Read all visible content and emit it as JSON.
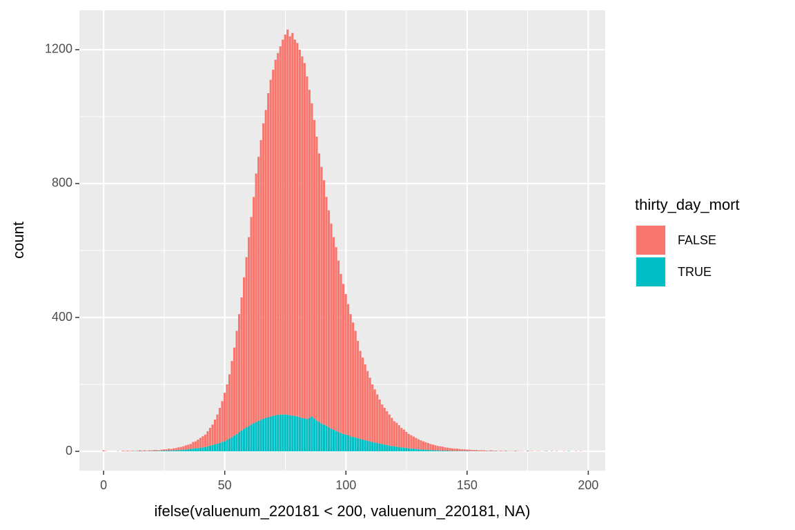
{
  "chart_data": {
    "type": "histogram",
    "stacked": true,
    "xlabel": "ifelse(valuenum_220181 < 200, valuenum_220181, NA)",
    "ylabel": "count",
    "legend_title": "thirty_day_mort",
    "legend": "right",
    "grid": true,
    "xlim": [
      -10,
      207
    ],
    "ylim": [
      -57.7,
      1317.5
    ],
    "xticks": [
      0,
      50,
      100,
      150,
      200
    ],
    "yticks": [
      0,
      400,
      800,
      1200
    ],
    "bins": [
      -0.5,
      0.5,
      1.5,
      2.5,
      3.5,
      4.5,
      5.5,
      6.5,
      7.5,
      8.5,
      9.5,
      10.5,
      11.5,
      12.5,
      13.5,
      14.5,
      15.5,
      16.5,
      17.5,
      18.5,
      19.5,
      20.5,
      21.5,
      22.5,
      23.5,
      24.5,
      25.5,
      26.5,
      27.5,
      28.5,
      29.5,
      30.5,
      31.5,
      32.5,
      33.5,
      34.5,
      35.5,
      36.5,
      37.5,
      38.5,
      39.5,
      40.5,
      41.5,
      42.5,
      43.5,
      44.5,
      45.5,
      46.5,
      47.5,
      48.5,
      49.5,
      50.5,
      51.5,
      52.5,
      53.5,
      54.5,
      55.5,
      56.5,
      57.5,
      58.5,
      59.5,
      60.5,
      61.5,
      62.5,
      63.5,
      64.5,
      65.5,
      66.5,
      67.5,
      68.5,
      69.5,
      70.5,
      71.5,
      72.5,
      73.5,
      74.5,
      75.5,
      76.5,
      77.5,
      78.5,
      79.5,
      80.5,
      81.5,
      82.5,
      83.5,
      84.5,
      85.5,
      86.5,
      87.5,
      88.5,
      89.5,
      90.5,
      91.5,
      92.5,
      93.5,
      94.5,
      95.5,
      96.5,
      97.5,
      98.5,
      99.5,
      100.5,
      101.5,
      102.5,
      103.5,
      104.5,
      105.5,
      106.5,
      107.5,
      108.5,
      109.5,
      110.5,
      111.5,
      112.5,
      113.5,
      114.5,
      115.5,
      116.5,
      117.5,
      118.5,
      119.5,
      120.5,
      121.5,
      122.5,
      123.5,
      124.5,
      125.5,
      126.5,
      127.5,
      128.5,
      129.5,
      130.5,
      131.5,
      132.5,
      133.5,
      134.5,
      135.5,
      136.5,
      137.5,
      138.5,
      139.5,
      140.5,
      141.5,
      142.5,
      143.5,
      144.5,
      145.5,
      146.5,
      147.5,
      148.5,
      149.5,
      150.5,
      151.5,
      152.5,
      153.5,
      154.5,
      155.5,
      156.5,
      157.5,
      158.5,
      159.5,
      160.5,
      161.5,
      162.5,
      163.5,
      164.5,
      165.5,
      166.5,
      167.5,
      168.5,
      169.5,
      170.5,
      171.5,
      172.5,
      173.5,
      174.5,
      175.5,
      176.5,
      177.5,
      178.5,
      179.5,
      180.5,
      181.5,
      182.5,
      183.5,
      184.5,
      185.5,
      186.5,
      187.5,
      188.5,
      189.5,
      190.5,
      191.5,
      192.5,
      193.5,
      194.5,
      195.5,
      196.5,
      197.5,
      198.5
    ],
    "series": [
      {
        "name": "TRUE",
        "color": "#00BFC4",
        "values": [
          0,
          0,
          0,
          0,
          0,
          0,
          0,
          0,
          0,
          0,
          0,
          0,
          0,
          1,
          0,
          1,
          0,
          1,
          0,
          1,
          1,
          1,
          1,
          1,
          2,
          2,
          2,
          3,
          2,
          3,
          3,
          4,
          4,
          5,
          5,
          6,
          7,
          8,
          9,
          10,
          11,
          12,
          13,
          15,
          17,
          19,
          21,
          23,
          25,
          28,
          30,
          34,
          38,
          42,
          47,
          52,
          57,
          62,
          67,
          72,
          76,
          80,
          84,
          88,
          91,
          94,
          97,
          100,
          102,
          104,
          106,
          108,
          109,
          110,
          110,
          110,
          109,
          108,
          107,
          106,
          104,
          102,
          100,
          98,
          96,
          100,
          104,
          98,
          92,
          88,
          84,
          80,
          76,
          72,
          68,
          64,
          61,
          58,
          55,
          52,
          50,
          48,
          45,
          43,
          41,
          39,
          37,
          35,
          33,
          31,
          30,
          28,
          26,
          25,
          23,
          22,
          20,
          19,
          17,
          16,
          15,
          14,
          13,
          12,
          11,
          10,
          9,
          8,
          8,
          7,
          6,
          6,
          5,
          5,
          4,
          4,
          3,
          3,
          3,
          2,
          2,
          2,
          2,
          1,
          1,
          1,
          1,
          1,
          1,
          1,
          1,
          1,
          0,
          1,
          0,
          1,
          0,
          0,
          1,
          0,
          1,
          0,
          1,
          0,
          0,
          0,
          1,
          0,
          0,
          0,
          1,
          0,
          0,
          0,
          0,
          1,
          0,
          0,
          0,
          0,
          0,
          0,
          0,
          1,
          0,
          0,
          0,
          0,
          0,
          0,
          0,
          0,
          1,
          0,
          0,
          0,
          0,
          0,
          0
        ]
      },
      {
        "name": "FALSE",
        "color": "#F8766D",
        "values": [
          3,
          1,
          0,
          0,
          0,
          0,
          1,
          0,
          2,
          1,
          2,
          1,
          2,
          0,
          2,
          2,
          2,
          2,
          2,
          2,
          2,
          3,
          3,
          2,
          3,
          4,
          4,
          5,
          5,
          6,
          7,
          8,
          9,
          10,
          13,
          14,
          15,
          20,
          21,
          25,
          29,
          33,
          37,
          45,
          53,
          61,
          74,
          87,
          105,
          122,
          145,
          166,
          192,
          228,
          263,
          308,
          353,
          398,
          453,
          508,
          564,
          620,
          676,
          742,
          789,
          836,
          883,
          920,
          968,
          1006,
          1034,
          1062,
          1081,
          1100,
          1120,
          1135,
          1151,
          1132,
          1143,
          1124,
          1116,
          1098,
          1080,
          1062,
          1024,
          980,
          936,
          892,
          848,
          802,
          766,
          730,
          684,
          648,
          612,
          576,
          549,
          512,
          475,
          448,
          420,
          392,
          365,
          342,
          319,
          291,
          263,
          245,
          227,
          209,
          190,
          172,
          159,
          145,
          132,
          118,
          110,
          101,
          93,
          84,
          75,
          71,
          65,
          58,
          54,
          48,
          43,
          40,
          36,
          33,
          30,
          27,
          25,
          22,
          21,
          18,
          17,
          15,
          13,
          13,
          12,
          10,
          9,
          9,
          8,
          7,
          7,
          6,
          5,
          5,
          4,
          4,
          4,
          3,
          4,
          2,
          3,
          3,
          1,
          2,
          2,
          2,
          1,
          1,
          2,
          1,
          1,
          1,
          1,
          1,
          1,
          1,
          1,
          1,
          0,
          1,
          1,
          1,
          0,
          1,
          1,
          0,
          1,
          0,
          0,
          1,
          0,
          1,
          0,
          0,
          1,
          0,
          0,
          0,
          0,
          1,
          0,
          1,
          0
        ]
      }
    ]
  }
}
